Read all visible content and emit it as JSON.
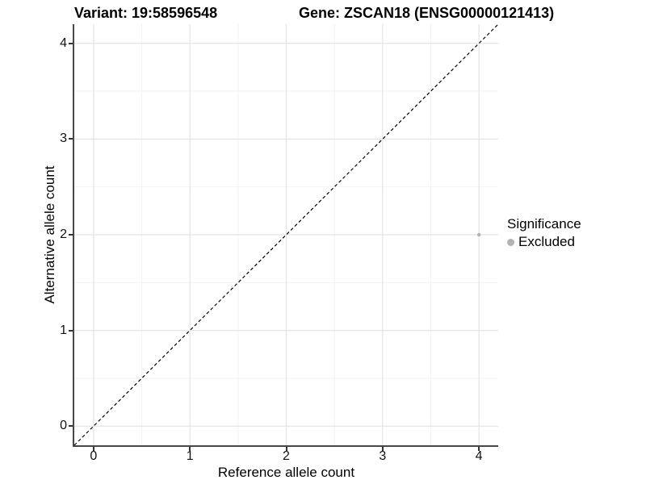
{
  "chart_data": {
    "type": "scatter",
    "titles": {
      "left": "Variant: 19:58596548",
      "right": "Gene: ZSCAN18 (ENSG00000121413)"
    },
    "xlabel": "Reference allele count",
    "ylabel": "Alternative allele count",
    "xlim": [
      -0.2,
      4.2
    ],
    "ylim": [
      -0.2,
      4.2
    ],
    "xticks": [
      0,
      1,
      2,
      3,
      4
    ],
    "yticks": [
      0,
      1,
      2,
      3,
      4
    ],
    "minor_gridlines_x": [
      0.5,
      1.5,
      2.5,
      3.5
    ],
    "minor_gridlines_y": [
      0.5,
      1.5,
      2.5,
      3.5
    ],
    "grid": "major+minor",
    "identity_line": {
      "equation": "y = x",
      "style": "dashed",
      "color": "#000000"
    },
    "series": [
      {
        "name": "Excluded",
        "marker": "circle",
        "color": "#b3b3b3",
        "points": [
          {
            "x": 4,
            "y": 2
          }
        ]
      }
    ],
    "legend": {
      "title": "Significance",
      "position": "right",
      "entries": [
        {
          "label": "Excluded",
          "color": "#b3b3b3"
        }
      ]
    }
  },
  "colors": {
    "background": "#ffffff",
    "axis_line": "#474747",
    "tick_mark": "#333333",
    "grid_major": "#e4e4e4",
    "grid_minor": "#f2f2f2",
    "point": "#b3b3b3",
    "identity_line": "#000000"
  }
}
